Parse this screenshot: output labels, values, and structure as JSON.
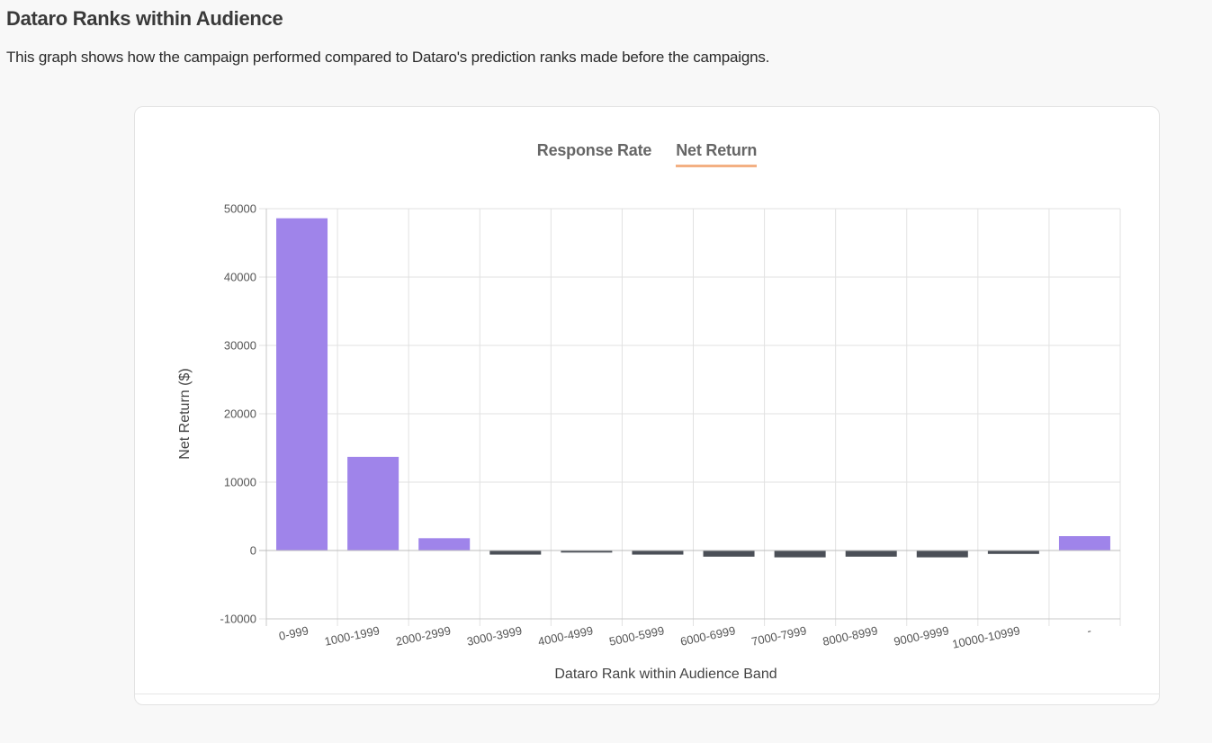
{
  "page": {
    "title": "Dataro Ranks within Audience",
    "description": "This graph shows how the campaign performed compared to Dataro's prediction ranks made before the campaigns."
  },
  "tabs": [
    {
      "label": "Response Rate",
      "active": false
    },
    {
      "label": "Net Return",
      "active": true
    }
  ],
  "colors": {
    "positive_bar": "#9f84ea",
    "negative_bar": "#4b4f57",
    "tab_underline": "#f3b083",
    "grid": "#e2e2e2"
  },
  "chart_data": {
    "type": "bar",
    "xlabel": "Dataro Rank within Audience Band",
    "ylabel": "Net Return ($)",
    "categories": [
      "0-999",
      "1000-1999",
      "2000-2999",
      "3000-3999",
      "4000-4999",
      "5000-5999",
      "6000-6999",
      "7000-7999",
      "8000-8999",
      "9000-9999",
      "10000-10999",
      "-"
    ],
    "values": [
      48600,
      13700,
      1800,
      -600,
      -300,
      -600,
      -900,
      -1000,
      -900,
      -1000,
      -500,
      2100
    ],
    "ylim": [
      -10000,
      50000
    ],
    "yticks": [
      50000,
      40000,
      30000,
      20000,
      10000,
      0,
      -10000
    ],
    "grid": true,
    "legend": "none"
  }
}
